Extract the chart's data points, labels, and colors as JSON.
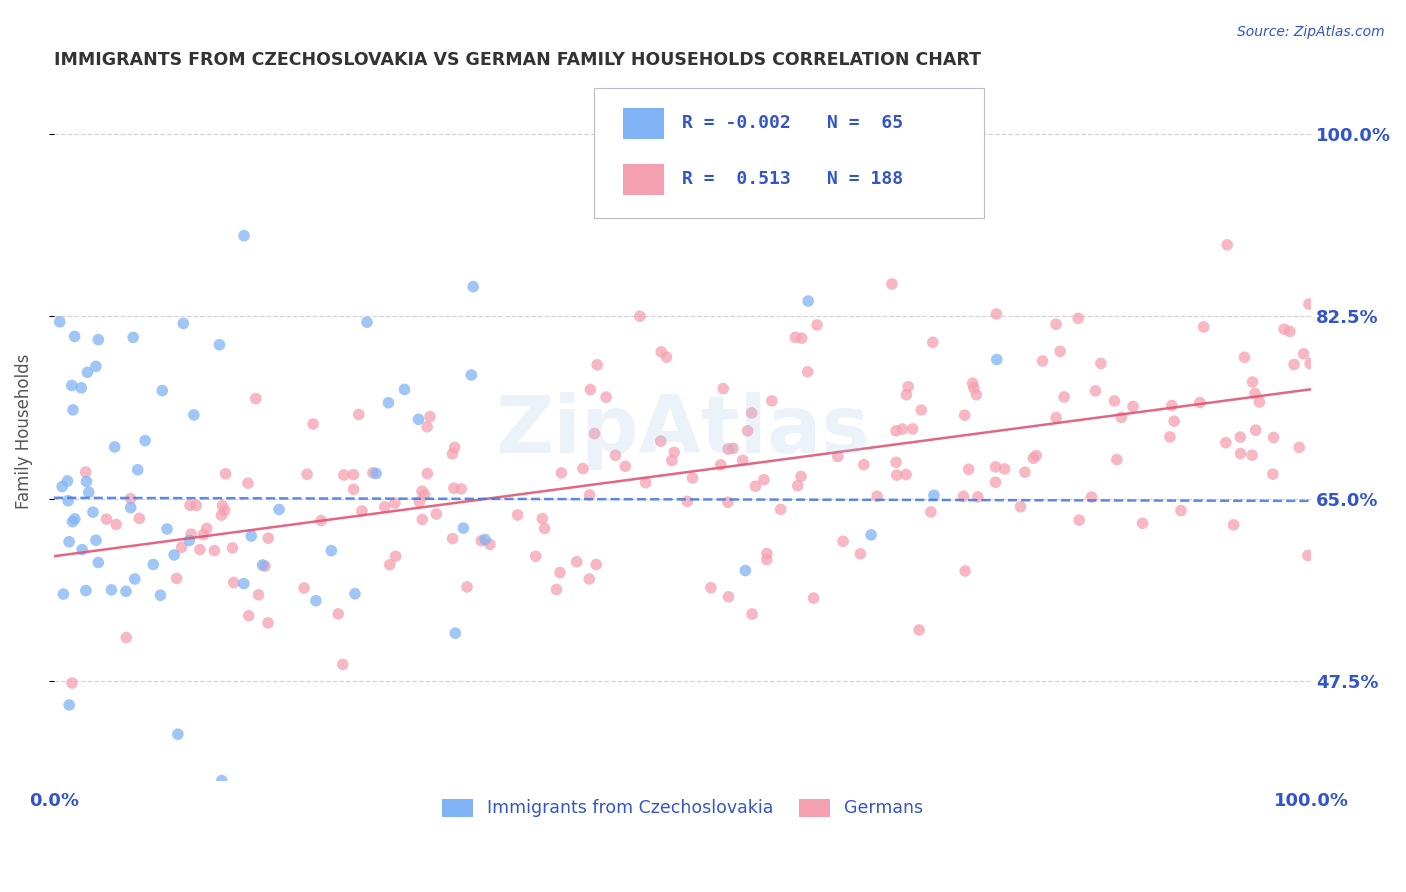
{
  "title": "IMMIGRANTS FROM CZECHOSLOVAKIA VS GERMAN FAMILY HOUSEHOLDS CORRELATION CHART",
  "source_text": "Source: ZipAtlas.com",
  "ylabel": "Family Households",
  "y_tick_labels": [
    "47.5%",
    "65.0%",
    "82.5%",
    "100.0%"
  ],
  "y_tick_values": [
    0.475,
    0.65,
    0.825,
    1.0
  ],
  "xlim": [
    0.0,
    1.0
  ],
  "ylim": [
    0.38,
    1.05
  ],
  "blue_R": -0.002,
  "blue_N": 65,
  "pink_R": 0.513,
  "pink_N": 188,
  "blue_color": "#7fb3f5",
  "pink_color": "#f5a0b0",
  "blue_trend_color": "#4477dd",
  "pink_trend_color": "#e05575",
  "grid_color": "#c8c8d8",
  "text_color": "#3355cc",
  "title_color": "#333333",
  "background_color": "#ffffff",
  "watermark": "ZipAtlas",
  "legend_label_blue": "Immigrants from Czechoslovakia",
  "legend_label_pink": "Germans",
  "blue_trend_start_y": 0.651,
  "blue_trend_end_y": 0.648,
  "pink_trend_start_y": 0.595,
  "pink_trend_end_y": 0.755
}
